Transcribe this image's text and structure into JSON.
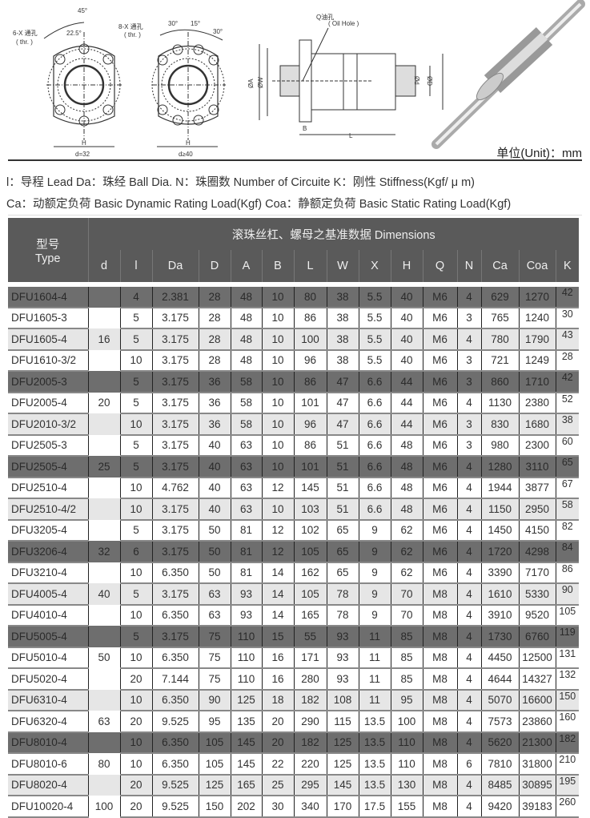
{
  "drawings": {
    "flange1": {
      "angle1": "45°",
      "angle2": "22.5°",
      "holes": "6-X 通孔",
      "thr": "( thr. )",
      "h": "H",
      "d": "d=32"
    },
    "flange2": {
      "angle1": "30°",
      "angle2": "15°",
      "angle3": "30°",
      "holes": "8-X 通孔",
      "thr": "( thr. )",
      "h": "H",
      "d": "d≥40"
    },
    "side": {
      "oil_hole": "Q油孔",
      "oil_hole_en": "( Oil Hole )",
      "a": "ØA",
      "w": "ØW",
      "dd": "Ød",
      "D": "ØD",
      "b": "B",
      "l": "L"
    },
    "unit": "单位(Unit)：mm"
  },
  "legend": {
    "line1": "l：导程 Lead  Da：珠经 Ball Dia.  N：珠圈数 Number of Circuite  K：刚性 Stiffness(Kgf/ μ m)",
    "line2": "Ca：动额定负荷 Basic Dynamic Rating Load(Kgf)  Coa：静额定负荷 Basic Static Rating Load(Kgf)"
  },
  "table": {
    "type_header_cn": "型号",
    "type_header_en": "Type",
    "group_header": "滚珠丝杠、螺母之基准数据 Dimensions",
    "columns": [
      "d",
      "l",
      "Da",
      "D",
      "A",
      "B",
      "L",
      "W",
      "X",
      "H",
      "Q",
      "N",
      "Ca",
      "Coa",
      "K"
    ],
    "rows": [
      {
        "shade": "dark",
        "type": "DFU1604-4",
        "d": "",
        "v": [
          "4",
          "2.381",
          "28",
          "48",
          "10",
          "80",
          "38",
          "5.5",
          "40",
          "M6",
          "4",
          "629",
          "1270",
          "42"
        ]
      },
      {
        "shade": "white",
        "type": "DFU1605-3",
        "d": "",
        "v": [
          "5",
          "3.175",
          "28",
          "48",
          "10",
          "86",
          "38",
          "5.5",
          "40",
          "M6",
          "3",
          "765",
          "1240",
          "30"
        ]
      },
      {
        "shade": "light",
        "type": "DFU1605-4",
        "d": "16",
        "v": [
          "5",
          "3.175",
          "28",
          "48",
          "10",
          "100",
          "38",
          "5.5",
          "40",
          "M6",
          "4",
          "780",
          "1790",
          "43"
        ]
      },
      {
        "shade": "white",
        "type": "DFU1610-3/2",
        "d": "",
        "v": [
          "10",
          "3.175",
          "28",
          "48",
          "10",
          "96",
          "38",
          "5.5",
          "40",
          "M6",
          "3",
          "721",
          "1249",
          "28"
        ]
      },
      {
        "shade": "dark",
        "type": "DFU2005-3",
        "d": "",
        "v": [
          "5",
          "3.175",
          "36",
          "58",
          "10",
          "86",
          "47",
          "6.6",
          "44",
          "M6",
          "3",
          "860",
          "1710",
          "42"
        ]
      },
      {
        "shade": "white",
        "type": "DFU2005-4",
        "d": "20",
        "v": [
          "5",
          "3.175",
          "36",
          "58",
          "10",
          "101",
          "47",
          "6.6",
          "44",
          "M6",
          "4",
          "1130",
          "2380",
          "52"
        ]
      },
      {
        "shade": "light",
        "type": "DFU2010-3/2",
        "d": "",
        "v": [
          "10",
          "3.175",
          "36",
          "58",
          "10",
          "96",
          "47",
          "6.6",
          "44",
          "M6",
          "3",
          "830",
          "1680",
          "38"
        ]
      },
      {
        "shade": "white",
        "type": "DFU2505-3",
        "d": "",
        "v": [
          "5",
          "3.175",
          "40",
          "63",
          "10",
          "86",
          "51",
          "6.6",
          "48",
          "M6",
          "3",
          "980",
          "2300",
          "60"
        ]
      },
      {
        "shade": "dark",
        "type": "DFU2505-4",
        "d": "25",
        "v": [
          "5",
          "3.175",
          "40",
          "63",
          "10",
          "101",
          "51",
          "6.6",
          "48",
          "M6",
          "4",
          "1280",
          "3110",
          "65"
        ]
      },
      {
        "shade": "white",
        "type": "DFU2510-4",
        "d": "",
        "v": [
          "10",
          "4.762",
          "40",
          "63",
          "12",
          "145",
          "51",
          "6.6",
          "48",
          "M6",
          "4",
          "1944",
          "3877",
          "67"
        ]
      },
      {
        "shade": "light",
        "type": "DFU2510-4/2",
        "d": "",
        "v": [
          "10",
          "3.175",
          "40",
          "63",
          "10",
          "103",
          "51",
          "6.6",
          "48",
          "M6",
          "4",
          "1150",
          "2950",
          "58"
        ]
      },
      {
        "shade": "white",
        "type": "DFU3205-4",
        "d": "",
        "v": [
          "5",
          "3.175",
          "50",
          "81",
          "12",
          "102",
          "65",
          "9",
          "62",
          "M6",
          "4",
          "1450",
          "4150",
          "82"
        ]
      },
      {
        "shade": "dark",
        "type": "DFU3206-4",
        "d": "32",
        "v": [
          "6",
          "3.175",
          "50",
          "81",
          "12",
          "105",
          "65",
          "9",
          "62",
          "M6",
          "4",
          "1720",
          "4298",
          "84"
        ]
      },
      {
        "shade": "white",
        "type": "DFU3210-4",
        "d": "",
        "v": [
          "10",
          "6.350",
          "50",
          "81",
          "14",
          "162",
          "65",
          "9",
          "62",
          "M6",
          "4",
          "3390",
          "7170",
          "86"
        ]
      },
      {
        "shade": "light",
        "type": "DFU4005-4",
        "d": "40",
        "v": [
          "5",
          "3.175",
          "63",
          "93",
          "14",
          "105",
          "78",
          "9",
          "70",
          "M8",
          "4",
          "1610",
          "5330",
          "90"
        ]
      },
      {
        "shade": "white",
        "type": "DFU4010-4",
        "d": "",
        "v": [
          "10",
          "6.350",
          "63",
          "93",
          "14",
          "165",
          "78",
          "9",
          "70",
          "M8",
          "4",
          "3910",
          "9520",
          "105"
        ]
      },
      {
        "shade": "dark",
        "type": "DFU5005-4",
        "d": "",
        "v": [
          "5",
          "3.175",
          "75",
          "110",
          "15",
          "55",
          "93",
          "11",
          "85",
          "M8",
          "4",
          "1730",
          "6760",
          "119"
        ]
      },
      {
        "shade": "white",
        "type": "DFU5010-4",
        "d": "50",
        "v": [
          "10",
          "6.350",
          "75",
          "110",
          "16",
          "171",
          "93",
          "11",
          "85",
          "M8",
          "4",
          "4450",
          "12500",
          "131"
        ]
      },
      {
        "shade": "white",
        "type": "DFU5020-4",
        "d": "",
        "v": [
          "20",
          "7.144",
          "75",
          "110",
          "16",
          "280",
          "93",
          "11",
          "85",
          "M8",
          "4",
          "4644",
          "14327",
          "132"
        ]
      },
      {
        "shade": "light",
        "type": "DFU6310-4",
        "d": "",
        "v": [
          "10",
          "6.350",
          "90",
          "125",
          "18",
          "182",
          "108",
          "11",
          "95",
          "M8",
          "4",
          "5070",
          "16600",
          "150"
        ]
      },
      {
        "shade": "white",
        "type": "DFU6320-4",
        "d": "63",
        "v": [
          "20",
          "9.525",
          "95",
          "135",
          "20",
          "290",
          "115",
          "13.5",
          "100",
          "M8",
          "4",
          "7573",
          "23860",
          "160"
        ]
      },
      {
        "shade": "dark",
        "type": "DFU8010-4",
        "d": "",
        "v": [
          "10",
          "6.350",
          "105",
          "145",
          "20",
          "182",
          "125",
          "13.5",
          "110",
          "M8",
          "4",
          "5620",
          "21300",
          "182"
        ]
      },
      {
        "shade": "white",
        "type": "DFU8010-6",
        "d": "80",
        "v": [
          "10",
          "6.350",
          "105",
          "145",
          "22",
          "220",
          "125",
          "13.5",
          "110",
          "M8",
          "6",
          "7810",
          "31800",
          "210"
        ]
      },
      {
        "shade": "light",
        "type": "DFU8020-4",
        "d": "",
        "v": [
          "20",
          "9.525",
          "125",
          "165",
          "25",
          "295",
          "145",
          "13.5",
          "130",
          "M8",
          "4",
          "8485",
          "30895",
          "195"
        ]
      },
      {
        "shade": "white",
        "type": "DFU10020-4",
        "d": "100",
        "v": [
          "20",
          "9.525",
          "150",
          "202",
          "30",
          "340",
          "170",
          "17.5",
          "155",
          "M8",
          "4",
          "9420",
          "39183",
          "260"
        ]
      }
    ]
  },
  "colors": {
    "header_bg": "#5a5a5a",
    "dark_row": "#6e6e6e",
    "light_row": "#e6e6e6"
  }
}
